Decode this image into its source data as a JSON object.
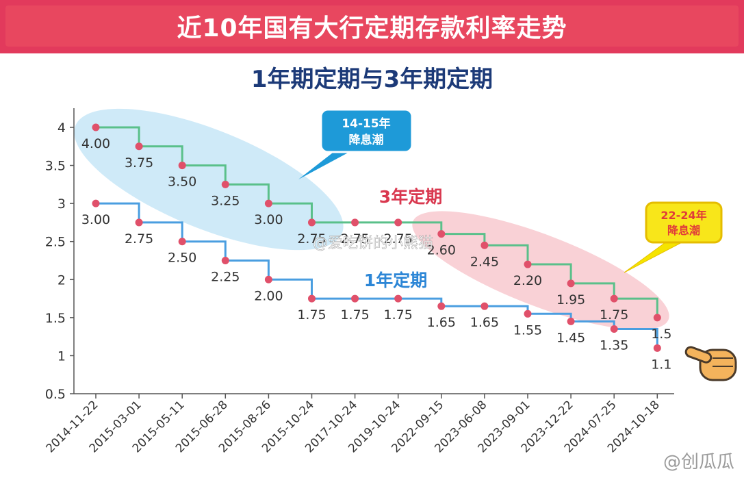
{
  "header": {
    "title": "近10年国有大行定期存款利率走势",
    "subtitle": "1年期定期与3年期定期"
  },
  "chart_data": {
    "type": "line",
    "x": [
      "2014-11-22",
      "2015-03-01",
      "2015-05-11",
      "2015-06-28",
      "2015-08-26",
      "2015-10-24",
      "2017-10-24",
      "2019-10-24",
      "2022-09-15",
      "2023-06-08",
      "2023-09-01",
      "2023-12-22",
      "2024-07-25",
      "2024-10-18"
    ],
    "series": [
      {
        "name": "3年定期",
        "values": [
          4.0,
          3.75,
          3.5,
          3.25,
          3.0,
          2.75,
          2.75,
          2.75,
          2.6,
          2.45,
          2.2,
          1.95,
          1.75,
          1.5
        ],
        "labels": [
          "4.00",
          "3.75",
          "3.50",
          "3.25",
          "3.00",
          "2.75",
          "2.75",
          "2.75",
          "2.60",
          "2.45",
          "2.20",
          "1.95",
          "1.75",
          "1.5"
        ],
        "color": "#5ac08a"
      },
      {
        "name": "1年定期",
        "values": [
          3.0,
          2.75,
          2.5,
          2.25,
          2.0,
          1.75,
          1.75,
          1.75,
          1.65,
          1.65,
          1.55,
          1.45,
          1.35,
          1.1
        ],
        "labels": [
          "3.00",
          "2.75",
          "2.50",
          "2.25",
          "2.00",
          "1.75",
          "1.75",
          "1.75",
          "1.65",
          "1.65",
          "1.55",
          "1.45",
          "1.35",
          "1.1"
        ],
        "color": "#4a9ee0"
      }
    ],
    "yticks": [
      "4",
      "3.5",
      "3",
      "2.5",
      "2",
      "1.5",
      "1",
      "0.5"
    ],
    "ylim": [
      0.5,
      4.0
    ],
    "step": true,
    "annotations": [
      {
        "text_lines": [
          "14-15年",
          "降息潮"
        ],
        "style": "blue-callout"
      },
      {
        "text_lines": [
          "22-24年",
          "降息潮"
        ],
        "style": "yellow-callout"
      }
    ],
    "marker_color": "#e0506a",
    "grid": false
  },
  "watermarks": {
    "center": "@爱吃饼的小熊猫",
    "corner": "@创瓜瓜"
  }
}
